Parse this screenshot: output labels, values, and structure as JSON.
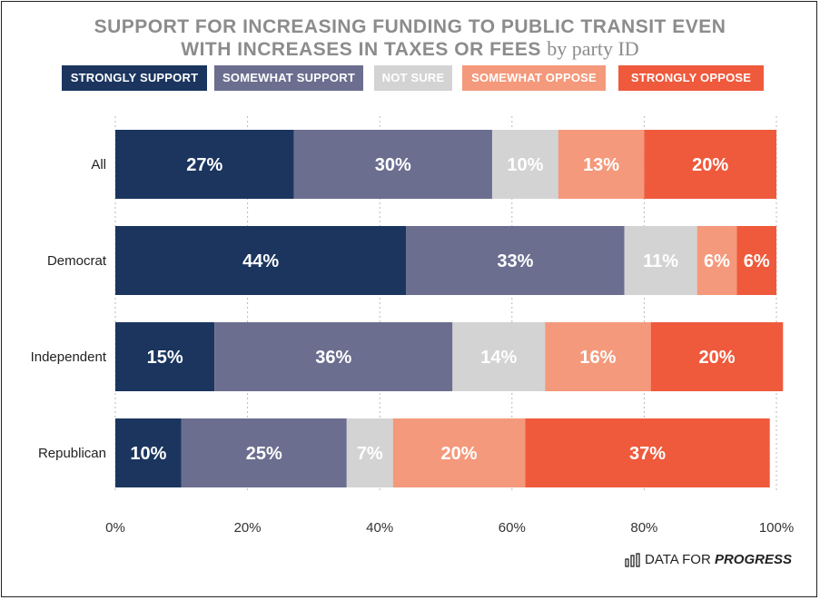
{
  "title": {
    "line1": "SUPPORT FOR INCREASING FUNDING TO PUBLIC TRANSIT EVEN",
    "line2": "WITH INCREASES IN TAXES OR FEES",
    "suffix": "by party ID"
  },
  "colors": {
    "strongly_support": "#1b355f",
    "somewhat_support": "#6b6e8f",
    "not_sure": "#d3d3d3",
    "somewhat_oppose": "#f4997b",
    "strongly_oppose": "#ef5a3c",
    "title": "#8c8c8c"
  },
  "logo": {
    "prefix": "DATA FOR ",
    "strong": "PROGRESS",
    "icon": "bar-chart-icon"
  },
  "chart_data": {
    "type": "bar",
    "orientation": "horizontal",
    "stacked": true,
    "categories": [
      "All",
      "Democrat",
      "Independent",
      "Republican"
    ],
    "series": [
      {
        "name": "STRONGLY SUPPORT",
        "values": [
          27,
          44,
          15,
          10
        ],
        "labels": [
          "27%",
          "44%",
          "15%",
          "10%"
        ]
      },
      {
        "name": "SOMEWHAT SUPPORT",
        "values": [
          30,
          33,
          36,
          25
        ],
        "labels": [
          "30%",
          "33%",
          "36%",
          "25%"
        ]
      },
      {
        "name": "NOT SURE",
        "values": [
          10,
          11,
          14,
          7
        ],
        "labels": [
          "10%",
          "11%",
          "14%",
          "7%"
        ]
      },
      {
        "name": "SOMEWHAT OPPOSE",
        "values": [
          13,
          6,
          16,
          20
        ],
        "labels": [
          "13%",
          "6%",
          "16%",
          "20%"
        ]
      },
      {
        "name": "STRONGLY OPPOSE",
        "values": [
          20,
          6,
          20,
          37
        ],
        "labels": [
          "20%",
          "6%",
          "20%",
          "37%"
        ]
      }
    ],
    "xlim": [
      0,
      100
    ],
    "xticks": [
      "0%",
      "20%",
      "40%",
      "60%",
      "80%",
      "100%"
    ],
    "grid": "vertical dotted",
    "legend": "top"
  }
}
